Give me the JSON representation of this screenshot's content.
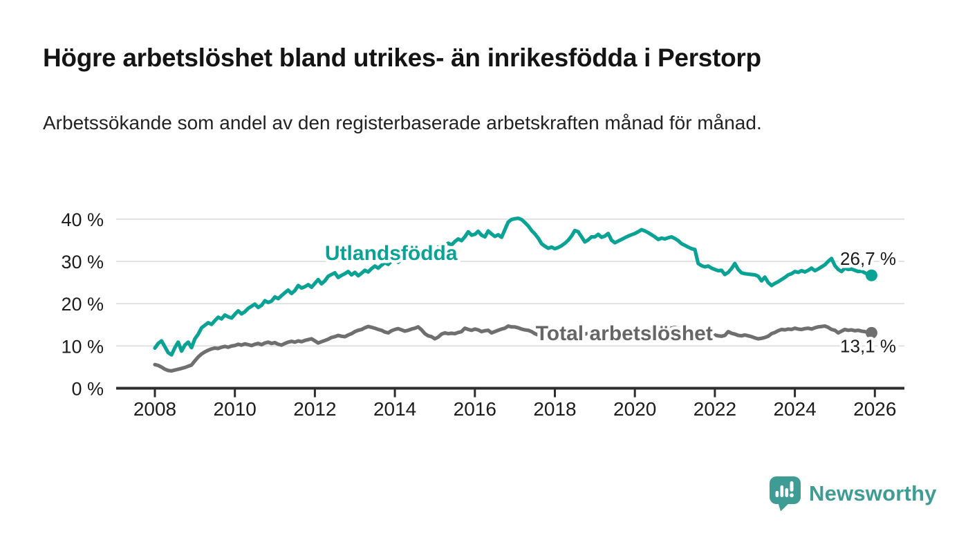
{
  "header": {
    "title": "Högre arbetslöshet bland utrikes- än inrikesfödda i Perstorp",
    "subtitle": "Arbetssökande som andel av den registerbaserade arbetskraften månad för månad."
  },
  "chart_data": {
    "type": "line",
    "x_unit": "month",
    "start_year": 2008,
    "end_point": "late 2025",
    "grid": "horizontal",
    "ylim": [
      0,
      42
    ],
    "xlim_years": [
      2006.8,
      2027.5
    ],
    "yticks": [
      {
        "value": 0,
        "label": "0 %"
      },
      {
        "value": 10,
        "label": "10 %"
      },
      {
        "value": 20,
        "label": "20 %"
      },
      {
        "value": 30,
        "label": "30 %"
      },
      {
        "value": 40,
        "label": "40 %"
      }
    ],
    "xticks": [
      {
        "value": 2008,
        "label": "2008"
      },
      {
        "value": 2010,
        "label": "2010"
      },
      {
        "value": 2012,
        "label": "2012"
      },
      {
        "value": 2014,
        "label": "2014"
      },
      {
        "value": 2016,
        "label": "2016"
      },
      {
        "value": 2018,
        "label": "2018"
      },
      {
        "value": 2020,
        "label": "2020"
      },
      {
        "value": 2022,
        "label": "2022"
      },
      {
        "value": 2024,
        "label": "2024"
      },
      {
        "value": 2026,
        "label": "2026"
      }
    ],
    "series": [
      {
        "id": "total",
        "name": "Total arbetslöshet",
        "color": "#6f6f6f",
        "end_label": "13,1 %",
        "end_value": 13.1,
        "value_label_position": "below",
        "values": [
          5.6,
          5.4,
          5.0,
          4.5,
          4.2,
          4.1,
          4.3,
          4.5,
          4.7,
          4.9,
          5.2,
          5.5,
          6.5,
          7.4,
          8.1,
          8.6,
          9.0,
          9.3,
          9.5,
          9.4,
          9.7,
          9.9,
          9.7,
          10.0,
          10.1,
          10.4,
          10.2,
          10.5,
          10.3,
          10.1,
          10.4,
          10.6,
          10.3,
          10.7,
          10.9,
          10.6,
          10.8,
          10.4,
          10.2,
          10.6,
          10.9,
          11.1,
          10.9,
          11.2,
          11.0,
          11.3,
          11.5,
          11.7,
          11.2,
          10.7,
          11.0,
          11.3,
          11.6,
          12.0,
          12.2,
          12.5,
          12.3,
          12.2,
          12.6,
          12.9,
          13.4,
          13.7,
          13.9,
          14.3,
          14.6,
          14.4,
          14.2,
          13.9,
          13.7,
          13.3,
          13.1,
          13.6,
          13.9,
          14.1,
          13.8,
          13.5,
          13.7,
          14.0,
          14.2,
          14.5,
          13.8,
          12.9,
          12.4,
          12.2,
          11.7,
          12.1,
          12.8,
          13.1,
          12.9,
          13.0,
          12.9,
          13.2,
          13.4,
          14.2,
          13.9,
          13.7,
          14.0,
          13.8,
          13.4,
          13.6,
          13.7,
          13.1,
          13.4,
          13.7,
          14.0,
          14.2,
          14.7,
          14.5,
          14.5,
          14.3,
          14.0,
          13.8,
          13.7,
          13.4,
          12.9,
          12.6,
          12.3,
          12.2,
          12.4,
          12.3,
          12.3,
          12.5,
          12.7,
          12.6,
          12.4,
          12.6,
          12.9,
          12.7,
          12.5,
          12.8,
          13.0,
          13.1,
          13.1,
          13.3,
          13.4,
          13.2,
          13.1,
          13.3,
          13.5,
          13.4,
          13.6,
          13.4,
          13.5,
          13.7,
          13.4,
          13.7,
          14.0,
          14.2,
          13.9,
          13.7,
          14.0,
          14.2,
          14.1,
          14.3,
          14.4,
          14.2,
          14.4,
          14.2,
          14.0,
          13.8,
          13.6,
          13.4,
          13.2,
          13.0,
          12.8,
          12.6,
          12.5,
          12.4,
          12.6,
          12.4,
          12.3,
          12.5,
          13.4,
          13.0,
          12.8,
          12.5,
          12.4,
          12.6,
          12.4,
          12.2,
          11.9,
          11.7,
          11.8,
          12.0,
          12.3,
          12.9,
          13.2,
          13.6,
          13.9,
          13.8,
          14.0,
          13.9,
          14.2,
          14.0,
          13.9,
          14.1,
          14.2,
          14.0,
          14.3,
          14.5,
          14.6,
          14.7,
          14.4,
          13.9,
          13.7,
          13.1,
          13.5,
          13.9,
          13.7,
          13.8,
          13.6,
          13.7,
          13.5,
          13.4,
          13.2,
          13.1
        ]
      },
      {
        "id": "utlandsfodda",
        "name": "Utlandsfödda",
        "color": "#0aa294",
        "end_label": "26,7 %",
        "end_value": 26.7,
        "value_label_position": "above",
        "values": [
          9.5,
          10.6,
          11.2,
          9.8,
          8.4,
          7.9,
          9.6,
          10.9,
          8.8,
          10.2,
          10.9,
          9.6,
          11.7,
          12.8,
          14.3,
          14.9,
          15.5,
          15.1,
          16.0,
          16.8,
          16.4,
          17.3,
          16.9,
          16.6,
          17.5,
          18.3,
          17.6,
          18.1,
          18.9,
          19.4,
          19.9,
          19.1,
          19.6,
          20.7,
          20.3,
          20.6,
          21.6,
          21.2,
          21.9,
          22.6,
          23.2,
          22.4,
          23.1,
          24.3,
          23.7,
          24.0,
          24.5,
          23.9,
          24.8,
          25.7,
          24.7,
          25.4,
          26.5,
          26.9,
          27.3,
          26.2,
          26.7,
          27.1,
          27.6,
          26.8,
          27.4,
          26.6,
          27.2,
          27.9,
          27.5,
          28.3,
          28.9,
          28.4,
          29.1,
          29.7,
          29.3,
          30.1,
          30.4,
          29.8,
          30.6,
          31.2,
          30.8,
          31.5,
          32.1,
          31.6,
          32.3,
          32.0,
          32.6,
          33.1,
          32.7,
          33.4,
          33.0,
          33.8,
          34.3,
          33.9,
          34.7,
          35.3,
          34.9,
          35.8,
          37.0,
          36.2,
          36.4,
          37.1,
          36.2,
          35.8,
          37.2,
          36.5,
          35.9,
          36.3,
          35.7,
          37.5,
          39.3,
          39.9,
          40.1,
          40.2,
          39.9,
          39.2,
          38.4,
          37.3,
          36.5,
          35.5,
          34.2,
          33.6,
          33.1,
          33.4,
          33.0,
          33.3,
          33.7,
          34.3,
          35.0,
          36.0,
          37.3,
          37.0,
          35.8,
          34.6,
          35.1,
          35.8,
          35.8,
          36.4,
          35.7,
          36.0,
          36.6,
          35.0,
          34.4,
          34.8,
          35.2,
          35.6,
          36.0,
          36.3,
          36.6,
          37.0,
          37.5,
          37.2,
          36.8,
          36.3,
          35.8,
          35.2,
          35.5,
          35.3,
          35.6,
          35.8,
          35.4,
          34.9,
          34.2,
          33.8,
          33.4,
          33.0,
          32.8,
          29.5,
          29.0,
          28.7,
          28.9,
          28.4,
          28.1,
          27.8,
          27.9,
          26.9,
          27.4,
          28.3,
          29.5,
          28.1,
          27.3,
          27.1,
          27.0,
          26.9,
          26.8,
          26.5,
          25.4,
          26.3,
          25.0,
          24.3,
          24.8,
          25.2,
          25.7,
          26.2,
          26.8,
          27.1,
          27.6,
          27.4,
          27.8,
          27.5,
          27.9,
          28.4,
          27.8,
          28.2,
          28.7,
          29.2,
          30.0,
          30.7,
          29.0,
          28.1,
          27.6,
          28.4,
          28.1,
          28.2,
          27.9,
          27.6,
          27.7,
          27.3,
          26.9,
          26.7
        ]
      }
    ],
    "series_labels": [
      {
        "text": "Utlandsfödda",
        "year": 2012.25,
        "value": 30.3,
        "color": "#0aa294"
      },
      {
        "text": "Total arbetslöshet",
        "year": 2017.52,
        "value": 11.4,
        "color": "#666666"
      }
    ]
  },
  "footer": {
    "brand": "Newsworthy",
    "brand_color": "#3e9c94"
  }
}
